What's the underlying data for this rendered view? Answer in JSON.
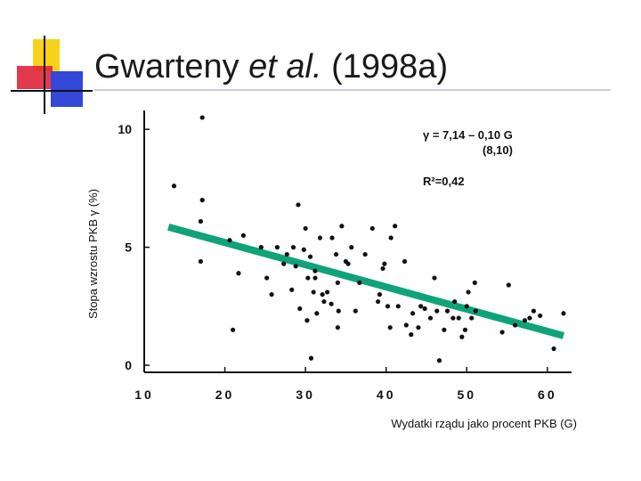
{
  "slide": {
    "title_part1": "Gwarteny ",
    "title_italic": "et al.",
    "title_part2": " (1998a)",
    "accent_colors": {
      "yellow": "#f7d21b",
      "red": "#e0243a",
      "blue": "#3347d8",
      "black": "#111111",
      "rule": "#c9ccdb"
    }
  },
  "chart_data": {
    "type": "scatter",
    "xlabel": "Wydatki rządu jako procent PKB (G)",
    "ylabel": "Stopa wzrostu PKB γ (%)",
    "xlim": [
      10,
      63
    ],
    "ylim": [
      -0.3,
      10.8
    ],
    "xticks": [
      "10",
      "20",
      "30",
      "40",
      "50",
      "60"
    ],
    "yticks": [
      "10",
      "5",
      "0"
    ],
    "grid": false,
    "equation_line1": "γ = 7,14 – 0,10 G",
    "equation_line2": "(8,10)",
    "r2_label": "R²=0,42",
    "points_color": "#111111",
    "fit_color": "#0fa37a",
    "fit_line": {
      "x": [
        13,
        62
      ],
      "y": [
        5.86,
        1.25
      ]
    },
    "points": [
      [
        13.7,
        7.6
      ],
      [
        17.2,
        10.5
      ],
      [
        17.2,
        7.0
      ],
      [
        17.0,
        6.1
      ],
      [
        17.0,
        4.4
      ],
      [
        20.6,
        5.3
      ],
      [
        21.0,
        1.5
      ],
      [
        21.7,
        3.9
      ],
      [
        22.3,
        5.5
      ],
      [
        24.5,
        5.0
      ],
      [
        25.2,
        3.7
      ],
      [
        25.8,
        3.0
      ],
      [
        26.5,
        5.0
      ],
      [
        27.3,
        4.3
      ],
      [
        27.7,
        4.7
      ],
      [
        28.3,
        3.2
      ],
      [
        28.5,
        5.0
      ],
      [
        28.8,
        4.2
      ],
      [
        29.1,
        6.8
      ],
      [
        29.3,
        2.4
      ],
      [
        29.8,
        4.9
      ],
      [
        30.0,
        5.8
      ],
      [
        30.3,
        3.7
      ],
      [
        30.2,
        1.9
      ],
      [
        30.6,
        4.6
      ],
      [
        30.7,
        0.3
      ],
      [
        31.0,
        3.1
      ],
      [
        31.2,
        4.0
      ],
      [
        31.2,
        3.7
      ],
      [
        31.4,
        2.2
      ],
      [
        31.8,
        5.4
      ],
      [
        32.1,
        3.0
      ],
      [
        32.3,
        2.7
      ],
      [
        32.7,
        3.1
      ],
      [
        33.2,
        2.6
      ],
      [
        33.3,
        5.4
      ],
      [
        33.8,
        4.7
      ],
      [
        34.0,
        3.5
      ],
      [
        34.1,
        2.3
      ],
      [
        34.0,
        1.6
      ],
      [
        34.5,
        5.9
      ],
      [
        35.0,
        4.4
      ],
      [
        35.3,
        4.3
      ],
      [
        35.7,
        5.0
      ],
      [
        36.2,
        2.3
      ],
      [
        36.7,
        3.5
      ],
      [
        37.4,
        4.7
      ],
      [
        38.3,
        5.8
      ],
      [
        39.0,
        2.7
      ],
      [
        39.2,
        3.0
      ],
      [
        39.6,
        4.1
      ],
      [
        39.8,
        4.3
      ],
      [
        40.2,
        2.5
      ],
      [
        40.5,
        1.6
      ],
      [
        40.6,
        5.4
      ],
      [
        41.1,
        5.9
      ],
      [
        41.5,
        2.5
      ],
      [
        42.3,
        4.4
      ],
      [
        42.5,
        1.7
      ],
      [
        43.1,
        1.3
      ],
      [
        43.3,
        2.2
      ],
      [
        44.0,
        1.6
      ],
      [
        44.3,
        2.5
      ],
      [
        44.8,
        2.4
      ],
      [
        45.5,
        2.0
      ],
      [
        46.0,
        3.7
      ],
      [
        46.3,
        2.3
      ],
      [
        46.6,
        0.2
      ],
      [
        47.2,
        1.5
      ],
      [
        47.6,
        2.3
      ],
      [
        48.3,
        2.0
      ],
      [
        48.5,
        2.7
      ],
      [
        49.0,
        2.0
      ],
      [
        49.4,
        1.2
      ],
      [
        49.8,
        1.5
      ],
      [
        50.0,
        2.5
      ],
      [
        50.2,
        3.1
      ],
      [
        50.6,
        2.0
      ],
      [
        51.0,
        3.5
      ],
      [
        51.1,
        2.3
      ],
      [
        54.4,
        1.4
      ],
      [
        55.2,
        3.4
      ],
      [
        56.0,
        1.7
      ],
      [
        57.2,
        1.9
      ],
      [
        57.8,
        2.0
      ],
      [
        58.3,
        2.3
      ],
      [
        59.1,
        2.1
      ],
      [
        60.8,
        0.7
      ],
      [
        62.0,
        2.2
      ]
    ]
  }
}
